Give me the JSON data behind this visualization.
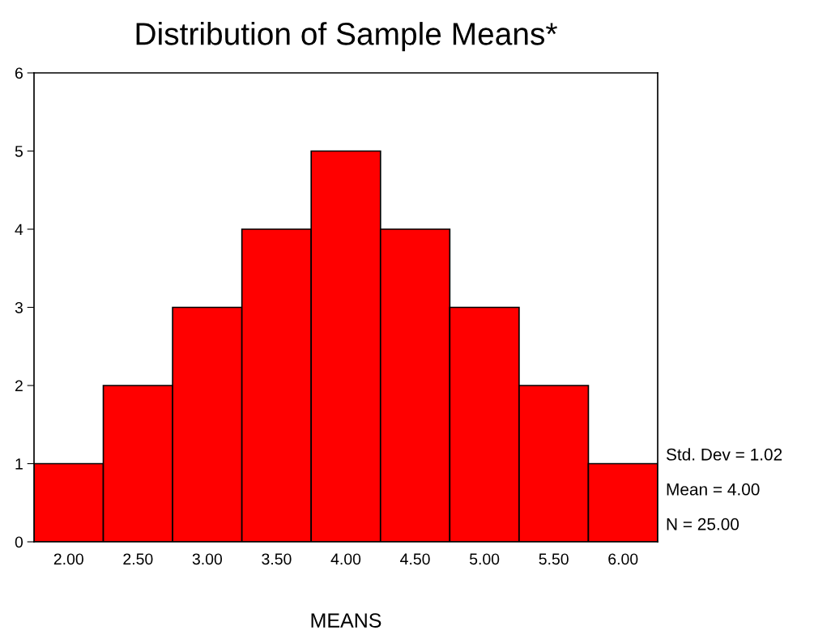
{
  "chart_data": {
    "type": "histogram",
    "title": "Distribution of Sample Means*",
    "xlabel": "MEANS",
    "bins": [
      1.75,
      2.25,
      2.75,
      3.25,
      3.75,
      4.25,
      4.75,
      5.25,
      5.75,
      6.25
    ],
    "values": [
      1,
      2,
      3,
      4,
      5,
      4,
      3,
      2,
      1
    ],
    "color": "#ff0000",
    "xlim": [
      1.75,
      6.25
    ],
    "ylim": [
      0,
      6
    ],
    "xticks": [
      {
        "value": 2,
        "label": "2.00"
      },
      {
        "value": 2.5,
        "label": "2.50"
      },
      {
        "value": 3,
        "label": "3.00"
      },
      {
        "value": 3.5,
        "label": "3.50"
      },
      {
        "value": 4,
        "label": "4.00"
      },
      {
        "value": 4.5,
        "label": "4.50"
      },
      {
        "value": 5,
        "label": "5.00"
      },
      {
        "value": 5.5,
        "label": "5.50"
      },
      {
        "value": 6,
        "label": "6.00"
      }
    ],
    "yticks": [
      0,
      1,
      2,
      3,
      4,
      5,
      6
    ],
    "grid": false,
    "annotations": [
      "Std. Dev = 1.02",
      "Mean = 4.00",
      "N = 25.00"
    ]
  }
}
